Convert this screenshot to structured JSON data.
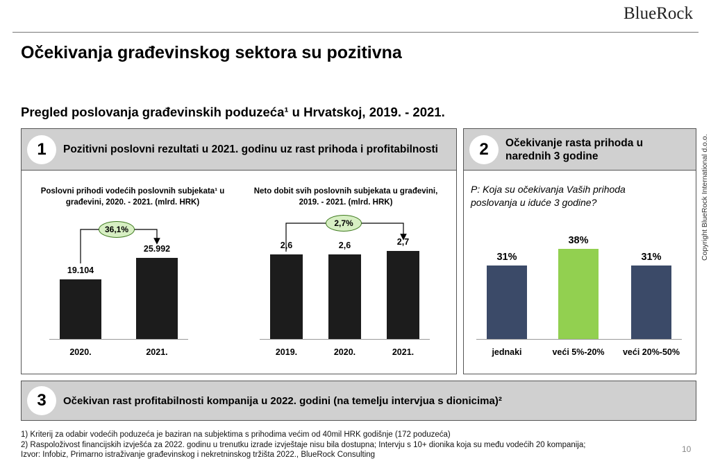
{
  "logo": "BlueRock",
  "title": "Očekivanja građevinskog sektora su pozitivna",
  "subtitle": "Pregled poslovanja građevinskih poduzeća¹ u Hrvatskoj, 2019. - 2021.",
  "copyright": "Copyright BlueRock International d.o.o.",
  "page_number": "10",
  "panel1": {
    "number": "1",
    "title": "Pozitivni poslovni rezultati u 2021. godinu uz rast prihoda i profitabilnosti"
  },
  "panel2": {
    "number": "2",
    "title": "Očekivanje rasta prihoda u narednih 3 godine",
    "question": "P: Koja su očekivanja Vaših prihoda poslovanja u iduće 3 godine?"
  },
  "panel3": {
    "number": "3",
    "title": "Očekivan rast profitabilnosti kompanija u 2022. godini (na temelju intervjua s dionicima)²"
  },
  "footnotes": [
    "1) Kriterij za odabir vodećih poduzeća je baziran na subjektima s prihodima većim od 40mil HRK godišnje (172 poduzeća)",
    "2) Raspoloživost financijskih izvješća za 2022. godinu u trenutku izrade izvještaje nisu bila dostupna; Intervju s 10+ dionika koja su među vodećih 20 kompanija;",
    "Izvor: Infobiz, Primarno istraživanje građevinskog i nekretninskog tržišta 2022., BlueRock Consulting"
  ],
  "colors": {
    "dark_bar": "#1c1c1c",
    "blue_bar": "#3b4a68",
    "green_bar": "#92d050",
    "header_gray": "#d0d0d0"
  },
  "chart_data": [
    {
      "type": "bar",
      "title": "Poslovni prihodi vodećih poslovnih subjekata¹ u građevini, 2020. - 2021. (mlrd. HRK)",
      "categories": [
        "2020.",
        "2021."
      ],
      "values": [
        19.104,
        25.992
      ],
      "value_labels": [
        "19.104",
        "25.992"
      ],
      "growth_label": "36,1%",
      "ylim": [
        0,
        30
      ]
    },
    {
      "type": "bar",
      "title": "Neto dobit svih poslovnih subjekata u građevini, 2019. - 2021. (mlrd. HRK)",
      "categories": [
        "2019.",
        "2020.",
        "2021."
      ],
      "values": [
        2.6,
        2.6,
        2.7
      ],
      "value_labels": [
        "2,6",
        "2,6",
        "2,7"
      ],
      "growth_label": "2,7%",
      "ylim": [
        0,
        3.2
      ]
    },
    {
      "type": "bar",
      "title": "",
      "categories": [
        "jednaki",
        "veći 5%-20%",
        "veći 20%-50%"
      ],
      "values": [
        31,
        38,
        31
      ],
      "value_labels": [
        "31%",
        "38%",
        "31%"
      ],
      "ylim": [
        0,
        60
      ]
    }
  ]
}
